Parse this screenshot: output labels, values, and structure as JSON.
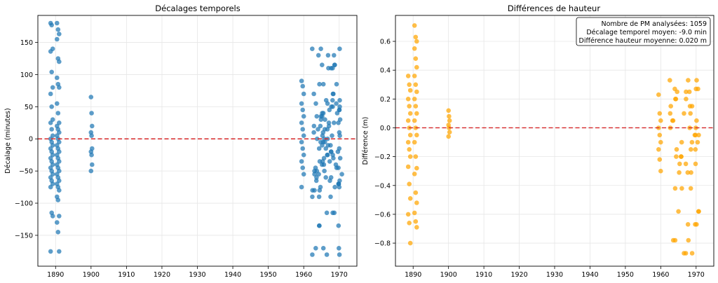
{
  "chart_data": [
    {
      "type": "scatter",
      "title": "Décalages temporels",
      "xlabel": "",
      "ylabel": "Décalage (minutes)",
      "xlim": [
        1885,
        1975
      ],
      "ylim": [
        -198,
        192
      ],
      "xticks": [
        1890,
        1900,
        1910,
        1920,
        1930,
        1940,
        1950,
        1960,
        1970
      ],
      "yticks": [
        -150,
        -100,
        -50,
        0,
        50,
        100,
        150
      ],
      "grid": true,
      "reference_line": {
        "y": 0,
        "color": "#d62728",
        "style": "dashed"
      },
      "color": "#1f77b4",
      "clusters": [
        {
          "x_range": [
            1888.6,
            1889.2
          ],
          "y_values": [
            180,
            177,
            140,
            136,
            104,
            80,
            70,
            50,
            30,
            25,
            15,
            5,
            0,
            -5,
            -10,
            -15,
            -20,
            -25,
            -30,
            -35,
            -40,
            -45,
            -50,
            -55,
            -60,
            -65,
            -70,
            -75,
            -115,
            -120,
            -175
          ]
        },
        {
          "x_range": [
            1890.4,
            1891.0
          ],
          "y_values": [
            180,
            170,
            163,
            155,
            125,
            120,
            95,
            85,
            80,
            55,
            40,
            25,
            20,
            15,
            10,
            5,
            0,
            -5,
            -10,
            -15,
            -20,
            -25,
            -30,
            -35,
            -40,
            -45,
            -50,
            -55,
            -60,
            -65,
            -70,
            -75,
            -80,
            -90,
            -95,
            -120,
            -130,
            -145,
            -175
          ]
        },
        {
          "x_range": [
            1900.0,
            1900.3
          ],
          "y_values": [
            65,
            40,
            20,
            10,
            5,
            -15,
            -20,
            -25,
            -40,
            -50
          ]
        },
        {
          "x_range": [
            1959.4,
            1960.0
          ],
          "y_values": [
            90,
            82,
            70,
            55,
            45,
            35,
            25,
            15,
            5,
            -5,
            -15,
            -25,
            -35,
            -45,
            -55,
            -75
          ]
        },
        {
          "x_range": [
            1962.4,
            1970.8
          ],
          "y_values": [
            140,
            130,
            115,
            110,
            85,
            70,
            60,
            55,
            50,
            45,
            40,
            35,
            30,
            25,
            20,
            15,
            10,
            5,
            0,
            -5,
            -10,
            -15,
            -20,
            -25,
            -30,
            -35,
            -40,
            -45,
            -50,
            -55,
            -60,
            -65,
            -70,
            -75,
            -80,
            -90,
            -115,
            -135,
            -170,
            -180
          ]
        }
      ]
    },
    {
      "type": "scatter",
      "title": "Différences de hauteur",
      "xlabel": "",
      "ylabel": "Différence (m)",
      "xlim": [
        1885,
        1975
      ],
      "ylim": [
        -0.96,
        0.78
      ],
      "xticks": [
        1890,
        1900,
        1910,
        1920,
        1930,
        1940,
        1950,
        1960,
        1970
      ],
      "yticks": [
        -0.8,
        -0.6,
        -0.4,
        -0.2,
        0.0,
        0.2,
        0.4,
        0.6
      ],
      "ytick_labels": [
        "−0.8",
        "−0.6",
        "−0.4",
        "−0.2",
        "0.0",
        "0.2",
        "0.4",
        "0.6"
      ],
      "grid": true,
      "reference_line": {
        "y": 0,
        "color": "#d62728",
        "style": "dashed"
      },
      "color": "#ffa500",
      "annotation": [
        "Nombre de PM analysées: 1059",
        "Décalage temporel moyen: -9.0 min",
        "Différence hauteur moyenne: 0.020 m"
      ],
      "annotation_placement": "top-right",
      "clusters": [
        {
          "x_range": [
            1888.6,
            1889.2
          ],
          "y_values": [
            0.36,
            0.3,
            0.26,
            0.2,
            0.15,
            0.1,
            0.05,
            0.0,
            -0.05,
            -0.1,
            -0.15,
            -0.2,
            -0.27,
            -0.39,
            -0.49,
            -0.6,
            -0.66,
            -0.8
          ]
        },
        {
          "x_range": [
            1890.4,
            1891.0
          ],
          "y_values": [
            0.71,
            0.63,
            0.6,
            0.55,
            0.48,
            0.42,
            0.36,
            0.3,
            0.25,
            0.2,
            0.15,
            0.1,
            0.05,
            0.0,
            -0.05,
            -0.1,
            -0.2,
            -0.28,
            -0.32,
            -0.45,
            -0.52,
            -0.59,
            -0.65,
            -0.69
          ]
        },
        {
          "x_range": [
            1900.0,
            1900.3
          ],
          "y_values": [
            0.12,
            0.08,
            0.05,
            0.02,
            0.0,
            -0.03,
            -0.06
          ]
        },
        {
          "x_range": [
            1959.4,
            1960.0
          ],
          "y_values": [
            0.23,
            0.1,
            0.05,
            0.0,
            -0.05,
            -0.1,
            -0.15,
            -0.22,
            -0.3
          ]
        },
        {
          "x_range": [
            1962.4,
            1970.8
          ],
          "y_values": [
            0.33,
            0.27,
            0.25,
            0.2,
            0.15,
            0.1,
            0.05,
            0.0,
            -0.05,
            -0.1,
            -0.15,
            -0.2,
            -0.25,
            -0.31,
            -0.42,
            -0.58,
            -0.67,
            -0.78,
            -0.87
          ]
        }
      ]
    }
  ]
}
